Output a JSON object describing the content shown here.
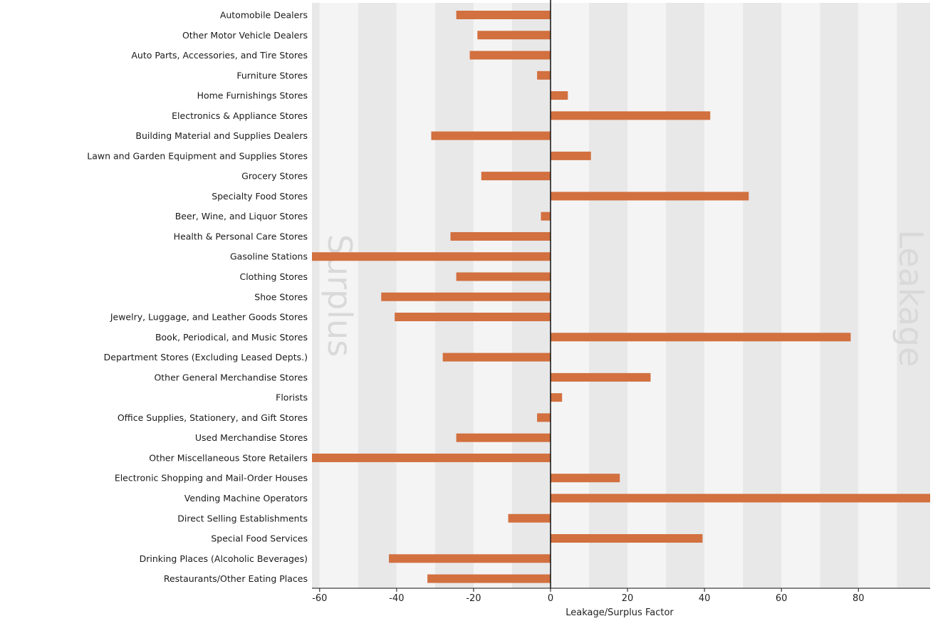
{
  "chart_data": {
    "type": "bar",
    "orientation": "horizontal",
    "xlabel": "Leakage/Surplus Factor",
    "xlim": [
      -62,
      100
    ],
    "xticks": [
      -60,
      -40,
      -20,
      0,
      20,
      40,
      60,
      80
    ],
    "grid": "alternating vertical bands",
    "bar_color": "#d2703f",
    "band_colors": [
      "#f4f4f4",
      "#e8e8e8"
    ],
    "side_labels": {
      "left": "Surplus",
      "right": "Leakage"
    },
    "categories": [
      "Automobile Dealers",
      "Other Motor Vehicle Dealers",
      "Auto Parts, Accessories, and Tire Stores",
      "Furniture Stores",
      "Home Furnishings Stores",
      "Electronics & Appliance Stores",
      "Building Material and Supplies Dealers",
      "Lawn and Garden Equipment and Supplies Stores",
      "Grocery Stores",
      "Specialty Food Stores",
      "Beer, Wine, and Liquor Stores",
      "Health & Personal Care Stores",
      "Gasoline Stations",
      "Clothing Stores",
      "Shoe Stores",
      "Jewelry, Luggage, and Leather Goods Stores",
      "Book, Periodical, and Music Stores",
      "Department Stores (Excluding Leased Depts.)",
      "Other General Merchandise Stores",
      "Florists",
      "Office Supplies, Stationery, and Gift Stores",
      "Used Merchandise Stores",
      "Other Miscellaneous Store Retailers",
      "Electronic Shopping and Mail-Order Houses",
      "Vending Machine Operators",
      "Direct Selling Establishments",
      "Special Food Services",
      "Drinking Places (Alcoholic Beverages)",
      "Restaurants/Other Eating Places"
    ],
    "values": [
      -24.5,
      -19,
      -21,
      -3.5,
      4.5,
      41.5,
      -31,
      10.5,
      -18,
      51.5,
      -2.5,
      -26,
      -62,
      -24.5,
      -44,
      -40.5,
      78,
      -28,
      26,
      3,
      -3.5,
      -24.5,
      -62,
      18,
      100,
      -11,
      39.5,
      -42,
      -32
    ]
  }
}
